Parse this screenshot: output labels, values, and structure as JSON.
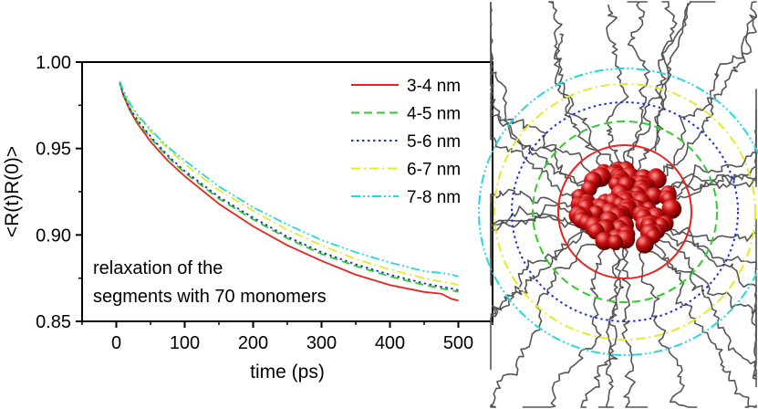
{
  "chart_data": {
    "type": "line",
    "title": "",
    "xlabel": "time (ps)",
    "ylabel": "<R(t)R(0)>",
    "xlim": [
      -50,
      550
    ],
    "ylim": [
      0.85,
      1.0
    ],
    "xticks": [
      "0",
      "100",
      "200",
      "300",
      "400",
      "500"
    ],
    "yticks": [
      "0.85",
      "0.90",
      "0.95",
      "1.00"
    ],
    "grid": false,
    "legend_position": "top-right",
    "annotation": [
      "relaxation of the",
      "segments with 70 monomers"
    ],
    "x": [
      5,
      10,
      20,
      30,
      50,
      75,
      100,
      150,
      200,
      250,
      300,
      350,
      400,
      450,
      475,
      490,
      500
    ],
    "series": [
      {
        "name": "3-4 nm",
        "color": "#e8231f",
        "dash": "solid",
        "values": [
          0.988,
          0.981,
          0.972,
          0.965,
          0.954,
          0.943,
          0.934,
          0.918,
          0.905,
          0.894,
          0.885,
          0.877,
          0.871,
          0.867,
          0.866,
          0.863,
          0.862
        ]
      },
      {
        "name": "4-5 nm",
        "color": "#2fcc2a",
        "dash": "dashed",
        "values": [
          0.988,
          0.982,
          0.973,
          0.966,
          0.956,
          0.945,
          0.936,
          0.921,
          0.909,
          0.898,
          0.889,
          0.882,
          0.876,
          0.871,
          0.869,
          0.868,
          0.867
        ]
      },
      {
        "name": "5-6 nm",
        "color": "#1c2fd6",
        "dash": "dotted",
        "values": [
          0.988,
          0.982,
          0.973,
          0.967,
          0.957,
          0.946,
          0.937,
          0.922,
          0.91,
          0.899,
          0.89,
          0.883,
          0.877,
          0.872,
          0.87,
          0.869,
          0.868
        ]
      },
      {
        "name": "6-7 nm",
        "color": "#e8e82a",
        "dash": "dashdot",
        "values": [
          0.989,
          0.984,
          0.975,
          0.969,
          0.96,
          0.95,
          0.941,
          0.926,
          0.914,
          0.903,
          0.894,
          0.886,
          0.88,
          0.875,
          0.873,
          0.872,
          0.871
        ]
      },
      {
        "name": "7-8 nm",
        "color": "#22d8e0",
        "dash": "dashdotdot",
        "values": [
          0.989,
          0.984,
          0.976,
          0.97,
          0.961,
          0.951,
          0.943,
          0.928,
          0.916,
          0.906,
          0.897,
          0.89,
          0.884,
          0.879,
          0.878,
          0.877,
          0.876
        ]
      }
    ],
    "inset_image": {
      "description_icon": "polymer-grafted-nanoparticle-render",
      "core_color": "#cc1010",
      "chain_color": "#555555",
      "shell_rings": [
        {
          "label": "3-4 nm",
          "color": "#e8231f",
          "dash": "solid"
        },
        {
          "label": "4-5 nm",
          "color": "#2fcc2a",
          "dash": "dashed"
        },
        {
          "label": "5-6 nm",
          "color": "#1c2fd6",
          "dash": "dotted"
        },
        {
          "label": "6-7 nm",
          "color": "#e8e82a",
          "dash": "dashdot"
        },
        {
          "label": "7-8 nm",
          "color": "#22d8e0",
          "dash": "dashdotdot"
        }
      ]
    }
  }
}
